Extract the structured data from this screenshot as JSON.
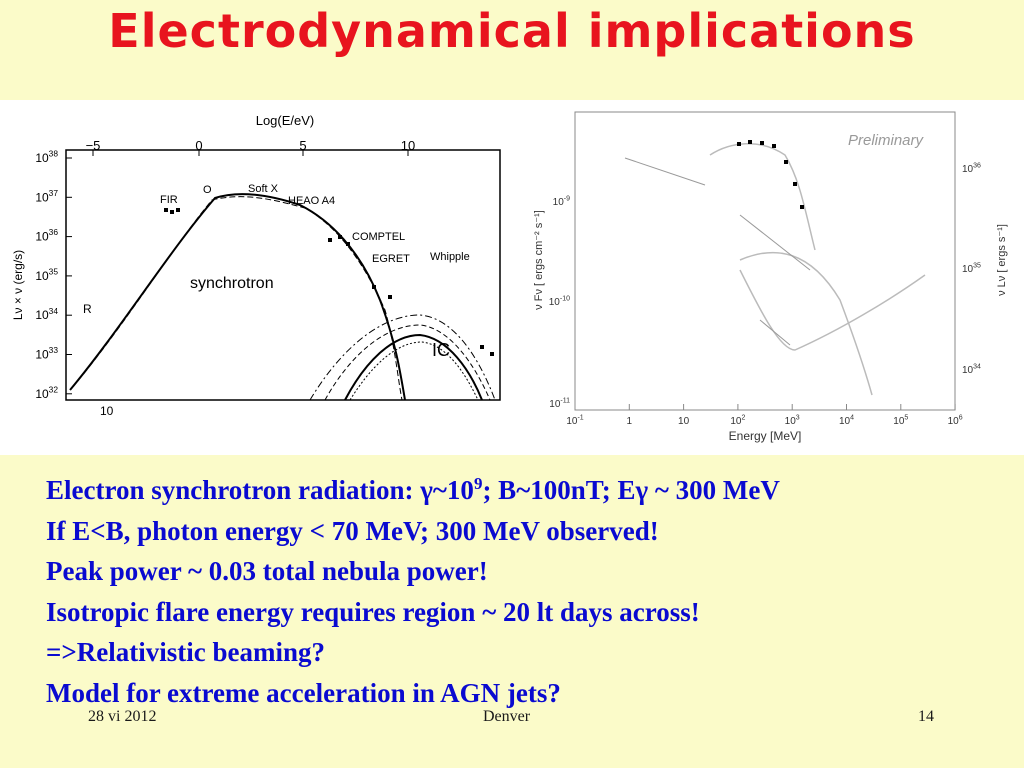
{
  "title": "Electrodynamical implications",
  "left_figure": {
    "x_axis_title": "Log(E/eV)",
    "x_ticks": [
      "−5",
      "0",
      "5",
      "10"
    ],
    "y_axis_title": "Lν × ν  (erg/s)",
    "y_ticks": [
      {
        "base": "10",
        "exp": "38"
      },
      {
        "base": "10",
        "exp": "37"
      },
      {
        "base": "10",
        "exp": "36"
      },
      {
        "base": "10",
        "exp": "35"
      },
      {
        "base": "10",
        "exp": "34"
      },
      {
        "base": "10",
        "exp": "33"
      },
      {
        "base": "10",
        "exp": "32"
      }
    ],
    "bottom_label": "10",
    "labels": {
      "fir": "FIR",
      "optical": "O",
      "soft_x": "Soft X",
      "heao": "HEAO A4",
      "comptel": "COMPTEL",
      "egret": "EGRET",
      "whipple": "Whipple",
      "synchrotron": "synchrotron",
      "ic": "IC",
      "radio": "R"
    }
  },
  "right_figure": {
    "watermark": "Preliminary",
    "x_axis_title": "Energy [MeV]",
    "x_ticks": [
      {
        "base": "10",
        "exp": "-1"
      },
      {
        "base": "1",
        "exp": ""
      },
      {
        "base": "10",
        "exp": ""
      },
      {
        "base": "10",
        "exp": "2"
      },
      {
        "base": "10",
        "exp": "3"
      },
      {
        "base": "10",
        "exp": "4"
      },
      {
        "base": "10",
        "exp": "5"
      },
      {
        "base": "10",
        "exp": "6"
      }
    ],
    "y_axis_title": "ν Fν [ ergs cm⁻² s⁻¹]",
    "y_ticks": [
      {
        "base": "10",
        "exp": "-9"
      },
      {
        "base": "10",
        "exp": "-10"
      },
      {
        "base": "10",
        "exp": "-11"
      }
    ],
    "y2_axis_title": "ν Lν [ ergs s⁻¹]",
    "y2_ticks": [
      {
        "base": "10",
        "exp": "36"
      },
      {
        "base": "10",
        "exp": "35"
      },
      {
        "base": "10",
        "exp": "34"
      }
    ]
  },
  "bullets": [
    [
      "Electron synchrotron radiation: γ~10",
      "9",
      "; B~100nT; Eγ ~ 300 MeV"
    ],
    [
      "If E<B, photon energy < 70 MeV; 300 MeV observed!"
    ],
    [
      "Peak power ~ 0.03 total nebula power!"
    ],
    [
      "Isotropic flare energy requires region ~ 20 lt days across!"
    ],
    [
      "=>Relativistic beaming?"
    ],
    [
      "Model for extreme acceleration in AGN jets?"
    ]
  ],
  "footer": {
    "date": "28 vi 2012",
    "place": "Denver",
    "page": "14"
  }
}
